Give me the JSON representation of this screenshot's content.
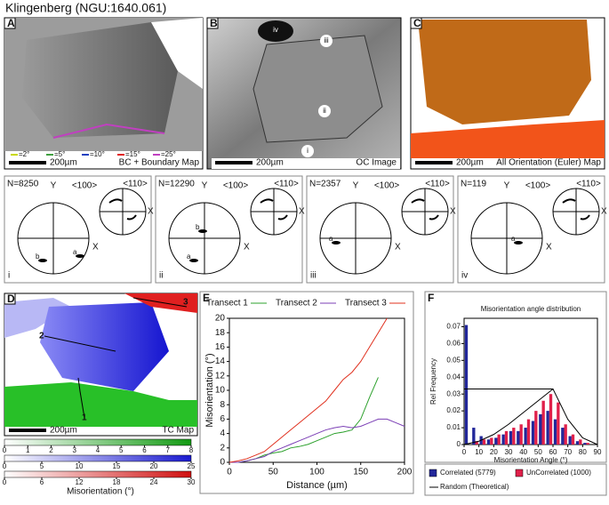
{
  "title": "Klingenberg (NGU:1640.061)",
  "maps": [
    {
      "panel": "A",
      "legend": [
        "=2°",
        "=5°",
        "=10°",
        "=15°",
        "=25°"
      ],
      "scale_bar": "200µm",
      "caption": "BC + Boundary Map"
    },
    {
      "panel": "B",
      "labels": [
        "iv",
        "iii",
        "ii",
        "i"
      ],
      "scale_bar": "200µm",
      "caption": "OC Image"
    },
    {
      "panel": "C",
      "scale_bar": "200µm",
      "caption": "All Orientation (Euler) Map"
    },
    {
      "panel": "D",
      "labels": [
        "1",
        "2",
        "3"
      ],
      "scale_bar": "200µm",
      "caption": "TC Map"
    }
  ],
  "pole_axes": {
    "dir100": "<100>",
    "dir110": "<110>",
    "y": "Y",
    "x": "X"
  },
  "pole_figures": [
    {
      "count": "N=8250",
      "id": "i",
      "labels": [
        "b",
        "a"
      ]
    },
    {
      "count": "N=12290",
      "id": "ii",
      "labels": [
        "a",
        "b"
      ]
    },
    {
      "count": "N=2357",
      "id": "iii",
      "labels": [
        "a"
      ]
    },
    {
      "count": "N=119",
      "id": "iv",
      "labels": [
        "a"
      ]
    }
  ],
  "color_scales": {
    "label": "Misorientation (°)",
    "scales": [
      {
        "color_from": "#ffffff",
        "color_to": "#139a13",
        "ticks": [
          0,
          1,
          2,
          3,
          4,
          5,
          6,
          7,
          8
        ]
      },
      {
        "color_from": "#ffffff",
        "color_to": "#1a1ad0",
        "ticks": [
          0,
          5,
          10,
          15,
          20,
          25
        ]
      },
      {
        "color_from": "#ffffff",
        "color_to": "#d01010",
        "ticks": [
          0,
          6,
          12,
          18,
          24,
          30
        ]
      }
    ]
  },
  "chart_data": [
    {
      "type": "line",
      "panel": "E",
      "x": [
        0,
        10,
        20,
        30,
        40,
        50,
        60,
        70,
        80,
        90,
        100,
        110,
        120,
        130,
        140,
        150,
        160,
        170,
        180,
        190,
        200
      ],
      "series": [
        {
          "name": "Transect 1",
          "color": "#2ca02c",
          "values": [
            0,
            0,
            0.2,
            0.5,
            1.0,
            1.3,
            1.5,
            2.0,
            2.2,
            2.5,
            3.0,
            3.5,
            4.0,
            4.2,
            4.5,
            6.0,
            9.0,
            11.8,
            null,
            null,
            null
          ]
        },
        {
          "name": "Transect 2",
          "color": "#7b3fb5",
          "values": [
            0,
            0,
            0.2,
            0.5,
            0.8,
            1.5,
            2.0,
            2.5,
            3.0,
            3.5,
            4.0,
            4.5,
            4.8,
            5.0,
            4.8,
            5.0,
            5.5,
            6.0,
            6.0,
            5.5,
            5.0
          ]
        },
        {
          "name": "Transect 3",
          "color": "#e0301e",
          "values": [
            0,
            0.2,
            0.5,
            1.0,
            1.5,
            2.5,
            3.5,
            4.5,
            5.5,
            6.5,
            7.5,
            8.5,
            10.0,
            11.5,
            12.5,
            14.0,
            16.0,
            18.0,
            20.0,
            null,
            null
          ]
        }
      ],
      "xlim": [
        0,
        200
      ],
      "ylim": [
        0,
        20
      ],
      "xticks": [
        0,
        50,
        100,
        150,
        200
      ],
      "yticks": [
        0,
        2,
        4,
        6,
        8,
        10,
        12,
        14,
        16,
        18,
        20
      ],
      "xlabel": "Distance (µm)",
      "ylabel": "Misorientation (°)"
    },
    {
      "type": "bar",
      "panel": "F",
      "title": "Misorientation angle distribution",
      "x": [
        2.5,
        7.5,
        12.5,
        17.5,
        22.5,
        27.5,
        32.5,
        37.5,
        42.5,
        47.5,
        52.5,
        57.5,
        62.5,
        67.5,
        72.5,
        77.5,
        82.5,
        87.5
      ],
      "series": [
        {
          "name": "Correlated (5779)",
          "color": "#22279a",
          "values": [
            0.071,
            0.01,
            0.005,
            0.003,
            0.004,
            0.006,
            0.008,
            0.008,
            0.01,
            0.014,
            0.018,
            0.02,
            0.015,
            0.01,
            0.005,
            0.002,
            0.001,
            0
          ]
        },
        {
          "name": "UnCorrelated (1000)",
          "color": "#e0204a",
          "values": [
            0,
            0.002,
            0.003,
            0.004,
            0.006,
            0.008,
            0.01,
            0.012,
            0.015,
            0.02,
            0.026,
            0.03,
            0.025,
            0.012,
            0.006,
            0.003,
            0.001,
            0
          ]
        },
        {
          "name": "Random (Theoretical)",
          "type": "line",
          "color": "#000000",
          "x": [
            0,
            10,
            20,
            30,
            40,
            50,
            60,
            70,
            80,
            90
          ],
          "values": [
            0,
            0.002,
            0.006,
            0.012,
            0.019,
            0.026,
            0.033,
            0.015,
            0.004,
            0
          ]
        }
      ],
      "xlim": [
        0,
        90
      ],
      "ylim": [
        0,
        0.075
      ],
      "xticks": [
        0,
        10,
        20,
        30,
        40,
        50,
        60,
        70,
        80,
        90
      ],
      "yticks": [
        0,
        0.01,
        0.02,
        0.03,
        0.04,
        0.05,
        0.06,
        0.07
      ],
      "xlabel": "Misorientation Angle (°)",
      "ylabel": "Rel Frequency"
    }
  ]
}
